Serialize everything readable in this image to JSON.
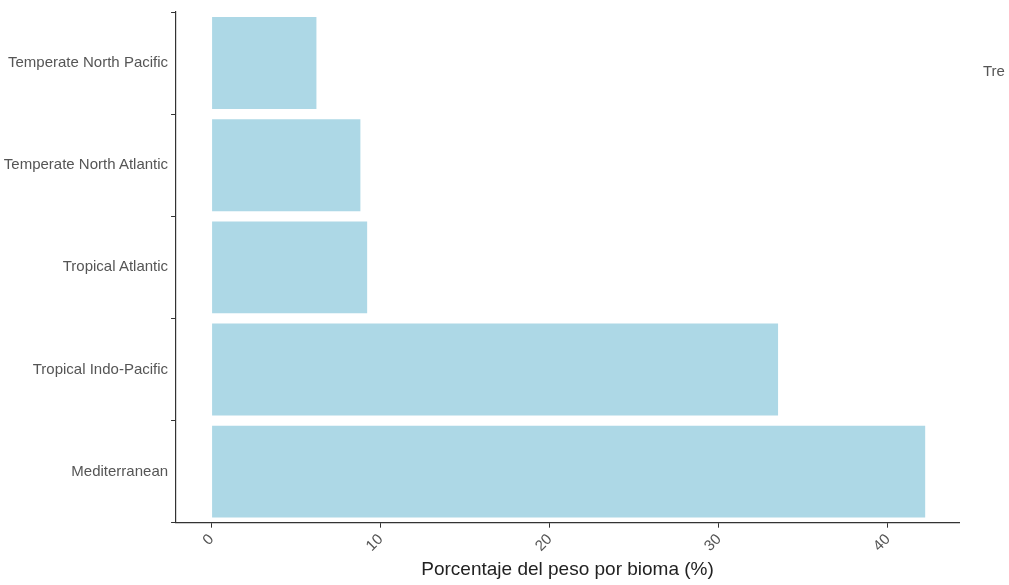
{
  "chart_data": {
    "type": "bar",
    "orientation": "horizontal",
    "xlabel": "Porcentaje del peso por bioma (%)",
    "categories": [
      "Temperate North Pacific",
      "Temperate North Atlantic",
      "Tropical Atlantic",
      "Tropical Indo-Pacific",
      "Mediterranean"
    ],
    "values": [
      6.2,
      8.8,
      9.2,
      33.5,
      42.2
    ],
    "color": "#add8e6",
    "xlim": [
      -2.1,
      44.2
    ],
    "xticks": [
      0,
      10,
      20,
      30,
      40
    ],
    "grid": false,
    "legend": false,
    "annotations": [
      "Tre"
    ]
  }
}
